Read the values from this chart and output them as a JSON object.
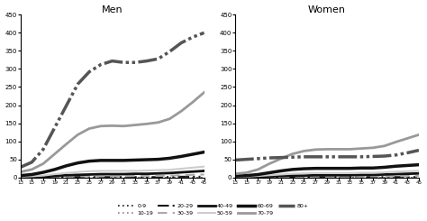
{
  "weeks": [
    13,
    15,
    17,
    19,
    21,
    23,
    25,
    27,
    29,
    31,
    33,
    35,
    37,
    39,
    41,
    43,
    45
  ],
  "men": {
    "0-9": [
      0,
      0,
      0,
      0,
      0,
      0,
      0,
      0,
      0,
      0,
      0,
      0,
      0,
      0,
      0,
      0,
      0
    ],
    "10-19": [
      0,
      0,
      0,
      0,
      0,
      0,
      0,
      0,
      0,
      0,
      0,
      0,
      0,
      0,
      0,
      0,
      0
    ],
    "20-29": [
      0,
      0,
      0,
      1,
      1,
      1,
      1,
      1,
      1,
      1,
      1,
      1,
      1,
      1,
      2,
      2,
      2
    ],
    "30-39": [
      0,
      0,
      1,
      2,
      2,
      3,
      3,
      3,
      3,
      3,
      4,
      4,
      4,
      5,
      6,
      7,
      8
    ],
    "40-49": [
      1,
      1,
      2,
      4,
      6,
      7,
      8,
      9,
      9,
      9,
      10,
      10,
      11,
      12,
      14,
      16,
      18
    ],
    "50-59": [
      2,
      3,
      5,
      9,
      12,
      15,
      17,
      18,
      18,
      18,
      18,
      19,
      20,
      21,
      24,
      27,
      30
    ],
    "60-69": [
      5,
      8,
      14,
      22,
      32,
      40,
      45,
      47,
      47,
      47,
      48,
      49,
      50,
      53,
      58,
      64,
      70
    ],
    "70-79": [
      15,
      22,
      38,
      65,
      92,
      118,
      135,
      142,
      143,
      142,
      145,
      148,
      152,
      162,
      183,
      208,
      235
    ],
    "80+": [
      28,
      42,
      78,
      138,
      198,
      258,
      292,
      312,
      322,
      318,
      318,
      322,
      328,
      348,
      372,
      388,
      400
    ]
  },
  "women": {
    "0-9": [
      0,
      0,
      0,
      0,
      0,
      0,
      0,
      0,
      0,
      0,
      0,
      0,
      0,
      0,
      0,
      0,
      0
    ],
    "10-19": [
      0,
      0,
      0,
      0,
      0,
      0,
      0,
      0,
      0,
      0,
      0,
      0,
      0,
      0,
      0,
      0,
      0
    ],
    "20-29": [
      0,
      0,
      0,
      0,
      0,
      1,
      1,
      1,
      1,
      1,
      1,
      1,
      1,
      1,
      1,
      1,
      1
    ],
    "30-39": [
      0,
      0,
      0,
      1,
      1,
      2,
      2,
      2,
      2,
      2,
      2,
      2,
      3,
      3,
      3,
      4,
      4
    ],
    "40-49": [
      1,
      1,
      2,
      3,
      4,
      5,
      5,
      6,
      6,
      6,
      6,
      7,
      7,
      8,
      9,
      10,
      11
    ],
    "50-59": [
      2,
      2,
      4,
      6,
      8,
      10,
      11,
      12,
      12,
      12,
      12,
      13,
      13,
      14,
      16,
      17,
      18
    ],
    "60-69": [
      4,
      5,
      8,
      13,
      18,
      22,
      24,
      25,
      25,
      25,
      25,
      26,
      26,
      28,
      31,
      33,
      35
    ],
    "70-79": [
      10,
      13,
      22,
      38,
      52,
      65,
      73,
      77,
      78,
      78,
      78,
      80,
      82,
      87,
      98,
      108,
      118
    ],
    "80+": [
      48,
      50,
      52,
      54,
      55,
      56,
      57,
      57,
      57,
      57,
      57,
      57,
      58,
      59,
      62,
      68,
      75
    ]
  },
  "age_groups": [
    "0-9",
    "10-19",
    "20-29",
    "30-39",
    "40-49",
    "50-59",
    "60-69",
    "70-79",
    "80+"
  ],
  "ylim": [
    0,
    450
  ],
  "yticks": [
    0,
    50,
    100,
    150,
    200,
    250,
    300,
    350,
    400,
    450
  ],
  "background_color": "#ffffff"
}
